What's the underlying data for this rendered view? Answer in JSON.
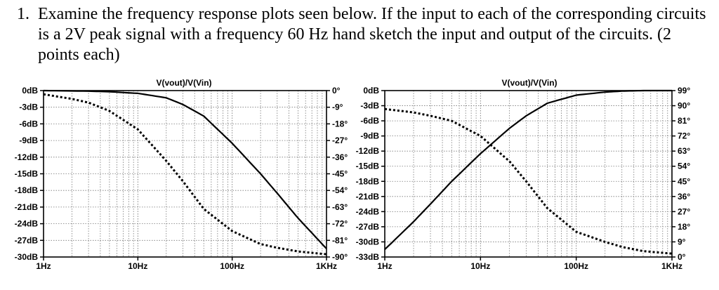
{
  "question": {
    "number": "1.",
    "text": "Examine the frequency response plots seen below. If the input to each of the corresponding circuits is a 2V peak signal with a frequency 60 Hz hand sketch the input and output of the circuits. (2 points each)"
  },
  "chart_data": [
    {
      "type": "line",
      "title": "V(vout)/V(Vin)",
      "x_scale": "log",
      "xlim": [
        1,
        1000
      ],
      "x_tick_labels": [
        "1Hz",
        "10Hz",
        "100Hz",
        "1KHz"
      ],
      "y_left_tick_labels": [
        "0dB",
        "-3dB",
        "-6dB",
        "-9dB",
        "-12dB",
        "-15dB",
        "-18dB",
        "-21dB",
        "-24dB",
        "-27dB",
        "-30dB"
      ],
      "y_right_tick_labels": [
        "0°",
        "-9°",
        "-18°",
        "-27°",
        "-36°",
        "-45°",
        "-54°",
        "-63°",
        "-72°",
        "-81°",
        "-90°"
      ],
      "ylim_left": [
        -30,
        0
      ],
      "ylim_right": [
        -90,
        0
      ],
      "series": [
        {
          "style": "solid",
          "axis": "left",
          "x": [
            1,
            3,
            5,
            10,
            20,
            30,
            50,
            100,
            200,
            300,
            500,
            1000
          ],
          "y": [
            0,
            -0.1,
            -0.2,
            -0.5,
            -1.3,
            -2.5,
            -4.6,
            -9.5,
            -15.0,
            -18.5,
            -23.0,
            -28.5
          ]
        },
        {
          "style": "dotted",
          "axis": "right",
          "x": [
            1,
            2,
            3,
            5,
            10,
            20,
            30,
            50,
            100,
            200,
            300,
            500,
            1000
          ],
          "y": [
            -2.0,
            -4.5,
            -6.5,
            -11,
            -21,
            -38,
            -49,
            -64,
            -76,
            -83,
            -85,
            -87,
            -88.5
          ]
        }
      ]
    },
    {
      "type": "line",
      "title": "V(vout)/V(Vin)",
      "x_scale": "log",
      "xlim": [
        1,
        1000
      ],
      "x_tick_labels": [
        "1Hz",
        "10Hz",
        "100Hz",
        "1KHz"
      ],
      "y_left_tick_labels": [
        "0dB",
        "-3dB",
        "-6dB",
        "-9dB",
        "-12dB",
        "-15dB",
        "-18dB",
        "-21dB",
        "-24dB",
        "-27dB",
        "-30dB",
        "-33dB"
      ],
      "y_right_tick_labels": [
        "99°",
        "90°",
        "81°",
        "72°",
        "63°",
        "54°",
        "45°",
        "36°",
        "27°",
        "18°",
        "9°",
        "0°"
      ],
      "ylim_left": [
        -33,
        0
      ],
      "ylim_right": [
        0,
        99
      ],
      "series": [
        {
          "style": "solid",
          "axis": "left",
          "x": [
            1,
            2,
            3,
            5,
            10,
            20,
            30,
            50,
            100,
            200,
            300,
            500,
            1000
          ],
          "y": [
            -31.5,
            -26,
            -22.5,
            -18,
            -12.5,
            -7.5,
            -5,
            -2.5,
            -0.9,
            -0.3,
            -0.1,
            0,
            0
          ]
        },
        {
          "style": "dotted",
          "axis": "right",
          "x": [
            1,
            2,
            3,
            5,
            10,
            20,
            30,
            50,
            100,
            200,
            300,
            500,
            1000
          ],
          "y": [
            88,
            86,
            84,
            81,
            72,
            57,
            45,
            29,
            15,
            9,
            6,
            3.5,
            2
          ]
        }
      ]
    }
  ]
}
